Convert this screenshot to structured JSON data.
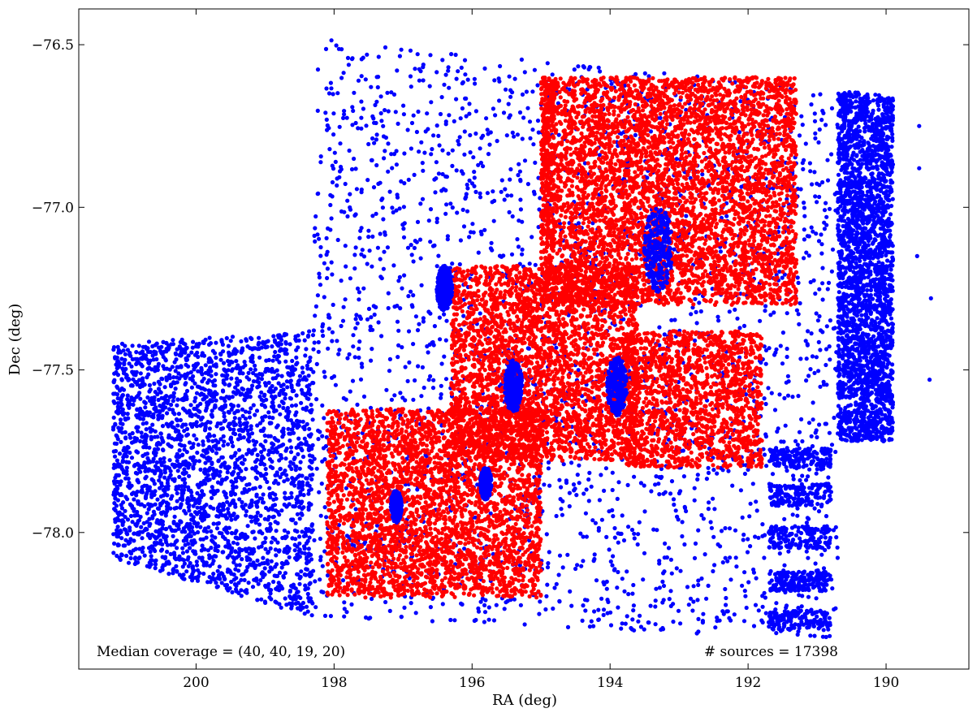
{
  "chart_data": {
    "type": "scatter",
    "title": "",
    "xlabel": "RA (deg)",
    "ylabel": "Dec (deg)",
    "xlim": [
      201.7,
      188.8
    ],
    "ylim": [
      -78.42,
      -76.39
    ],
    "x_ticks": [
      200,
      198,
      196,
      194,
      192,
      190
    ],
    "x_tick_labels": [
      "200",
      "198",
      "196",
      "194",
      "192",
      "190"
    ],
    "y_ticks": [
      -76.5,
      -77.0,
      -77.5,
      -78.0
    ],
    "y_tick_labels": [
      "−76.5",
      "−77.0",
      "−77.5",
      "−78.0"
    ],
    "grid": false,
    "legend": "none",
    "series": [
      {
        "color": "#0000ff",
        "regions": [
          {
            "ra": [
              198.3,
              190.7
            ],
            "dec_top": [
              -76.48,
              -76.64
            ],
            "dec_bottom": [
              -78.26,
              -78.33
            ]
          },
          {
            "ra": [
              201.2,
              198.3
            ],
            "dec_top": [
              -77.42,
              -77.38
            ],
            "dec_bottom": [
              -78.08,
              -78.26
            ]
          },
          {
            "ra": [
              190.7,
              189.9
            ],
            "dec_top": [
              -76.64,
              -76.66
            ],
            "dec_bottom": [
              -77.72,
              -77.72
            ]
          }
        ],
        "finger_strips": [
          {
            "ra": [
              191.7,
              190.8
            ],
            "dec": [
              -77.74,
              -77.8
            ]
          },
          {
            "ra": [
              191.7,
              190.8
            ],
            "dec": [
              -77.85,
              -77.92
            ]
          },
          {
            "ra": [
              191.7,
              190.8
            ],
            "dec": [
              -77.98,
              -78.05
            ]
          },
          {
            "ra": [
              191.7,
              190.8
            ],
            "dec": [
              -78.12,
              -78.18
            ]
          },
          {
            "ra": [
              191.7,
              190.8
            ],
            "dec": [
              -78.24,
              -78.3
            ]
          }
        ],
        "isolated_points": [
          {
            "ra": 189.52,
            "dec": -76.75
          },
          {
            "ra": 189.52,
            "dec": -76.88
          },
          {
            "ra": 189.55,
            "dec": -77.15
          },
          {
            "ra": 189.35,
            "dec": -77.28
          },
          {
            "ra": 189.37,
            "dec": -77.53
          }
        ],
        "dense_clusters": [
          {
            "ra": 193.3,
            "dec": -77.13,
            "radius_deg": 0.13
          },
          {
            "ra": 195.4,
            "dec": -77.55,
            "radius_deg": 0.08
          },
          {
            "ra": 193.9,
            "dec": -77.55,
            "radius_deg": 0.09
          },
          {
            "ra": 195.8,
            "dec": -77.85,
            "radius_deg": 0.05
          },
          {
            "ra": 197.1,
            "dec": -77.92,
            "radius_deg": 0.05
          },
          {
            "ra": 196.4,
            "dec": -77.25,
            "radius_deg": 0.07
          }
        ]
      },
      {
        "color": "#ff0000",
        "regions": [
          {
            "ra": [
              195.0,
              191.3
            ],
            "dec": [
              -76.6,
              -77.3
            ]
          },
          {
            "ra": [
              196.3,
              193.6
            ],
            "dec": [
              -77.18,
              -77.78
            ]
          },
          {
            "ra": [
              193.8,
              191.8
            ],
            "dec": [
              -77.38,
              -77.8
            ]
          },
          {
            "ra": [
              198.1,
              195.0
            ],
            "dec": [
              -77.62,
              -78.2
            ]
          },
          {
            "ra": [
              195.0,
              194.8
            ],
            "dec": [
              -76.6,
              -77.08
            ]
          }
        ]
      }
    ],
    "annotations": {
      "coverage": "Median coverage = (40, 40, 19, 20)",
      "sources": "# sources = 17398"
    }
  }
}
